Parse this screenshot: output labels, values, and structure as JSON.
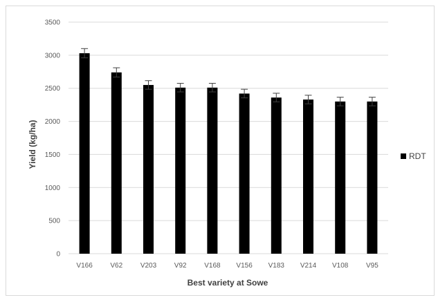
{
  "chart_data": {
    "type": "bar",
    "categories": [
      "V166",
      "V62",
      "V203",
      "V92",
      "V168",
      "V156",
      "V183",
      "V214",
      "V108",
      "V95"
    ],
    "series": [
      {
        "name": "RDT",
        "values": [
          3030,
          2740,
          2550,
          2510,
          2510,
          2420,
          2360,
          2330,
          2300,
          2300
        ],
        "error": [
          70,
          70,
          65,
          65,
          65,
          65,
          65,
          65,
          65,
          65
        ]
      }
    ],
    "title": "",
    "xlabel": "Best variety at Sowe",
    "ylabel": "Yield (kg/ha)",
    "ylim": [
      0,
      3500
    ],
    "yticks": [
      0,
      500,
      1000,
      1500,
      2000,
      2500,
      3000,
      3500
    ],
    "grid": true,
    "legend": "right",
    "colors": {
      "bar": "#000000",
      "grid": "#d9d9d9",
      "error": "#404040"
    }
  }
}
